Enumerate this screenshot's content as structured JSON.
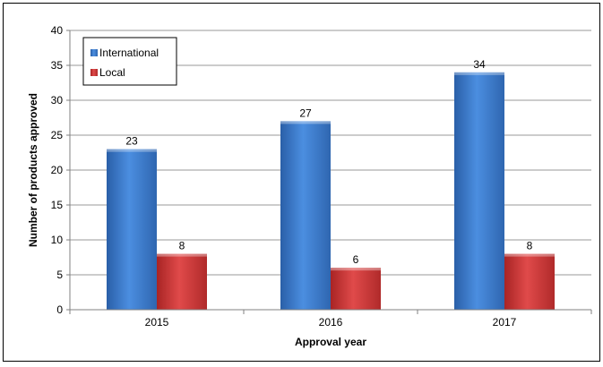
{
  "chart_data": {
    "type": "bar",
    "categories": [
      "2015",
      "2016",
      "2017"
    ],
    "series": [
      {
        "name": "International",
        "values": [
          23,
          27,
          34
        ],
        "color": "#3a78c8"
      },
      {
        "name": "Local",
        "values": [
          8,
          6,
          8
        ],
        "color": "#cc3333"
      }
    ],
    "xlabel": "Approval year",
    "ylabel": "Number of products approved",
    "ylim": [
      0,
      40
    ],
    "yticks": [
      0,
      5,
      10,
      15,
      20,
      25,
      30,
      35,
      40
    ],
    "grid": true,
    "legend_position": "top-left"
  }
}
